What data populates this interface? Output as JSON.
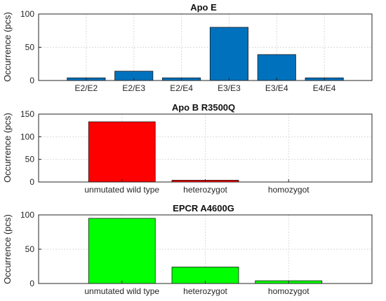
{
  "chart_data": [
    {
      "type": "bar",
      "title": "Apo E",
      "ylabel": "Occurrence (pcs)",
      "categories": [
        "E2/E2",
        "E2/E3",
        "E2/E4",
        "E3/E3",
        "E3/E4",
        "E4/E4"
      ],
      "values": [
        4,
        14,
        4,
        80,
        39,
        4
      ],
      "ylim": [
        0,
        100
      ],
      "yticks": [
        0,
        50,
        100
      ],
      "xlim": [
        0,
        7
      ],
      "color": "#0072BD",
      "grid": true
    },
    {
      "type": "bar",
      "title": "Apo B R3500Q",
      "ylabel": "Occurrence (pcs)",
      "categories": [
        "unmutated wild type",
        "heterozygot",
        "homozygot"
      ],
      "values": [
        133,
        4,
        0
      ],
      "ylim": [
        0,
        150
      ],
      "yticks": [
        0,
        50,
        100,
        150
      ],
      "xlim": [
        0,
        4
      ],
      "color": "#FF0000",
      "grid": true
    },
    {
      "type": "bar",
      "title": "EPCR A4600G",
      "ylabel": "Occurrence (pcs)",
      "categories": [
        "unmutated wild type",
        "heterozygot",
        "homozygot"
      ],
      "values": [
        95,
        24,
        4
      ],
      "ylim": [
        0,
        100
      ],
      "yticks": [
        0,
        50,
        100
      ],
      "xlim": [
        0,
        4
      ],
      "color": "#00FF00",
      "grid": true
    }
  ]
}
